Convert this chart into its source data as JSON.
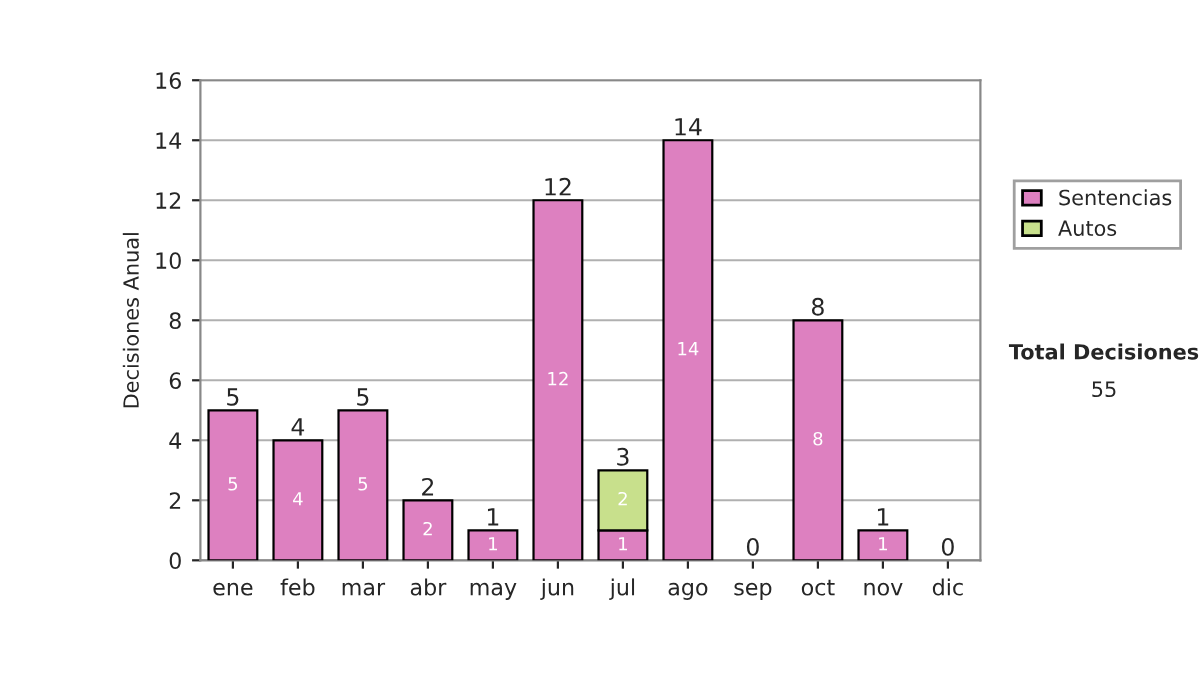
{
  "chart_data": {
    "type": "bar",
    "stacked": true,
    "ylabel": "Decisiones Anual",
    "categories": [
      "ene",
      "feb",
      "mar",
      "abr",
      "may",
      "jun",
      "jul",
      "ago",
      "sep",
      "oct",
      "nov",
      "dic"
    ],
    "series": [
      {
        "name": "Sentencias",
        "color": "#dd80c0",
        "values": [
          5,
          4,
          5,
          2,
          1,
          12,
          1,
          14,
          0,
          8,
          1,
          0
        ],
        "value_labels": [
          "5",
          "4",
          "5",
          "2",
          "1",
          "12",
          "1",
          "14",
          null,
          "8",
          "1",
          null
        ]
      },
      {
        "name": "Autos",
        "color": "#c8e08c",
        "values": [
          0,
          0,
          0,
          0,
          0,
          0,
          2,
          0,
          0,
          0,
          0,
          0
        ],
        "value_labels": [
          null,
          null,
          null,
          null,
          null,
          null,
          "2",
          null,
          null,
          null,
          null,
          null
        ]
      }
    ],
    "totals": [
      "5",
      "4",
      "5",
      "2",
      "1",
      "12",
      "3",
      "14",
      "0",
      "8",
      "1",
      "0"
    ],
    "ylim": [
      0,
      16
    ],
    "yticks": [
      0,
      2,
      4,
      6,
      8,
      10,
      12,
      14,
      16
    ],
    "grid": "y",
    "legend": "right",
    "annotations": [
      "Total Decisiones",
      "55"
    ]
  }
}
